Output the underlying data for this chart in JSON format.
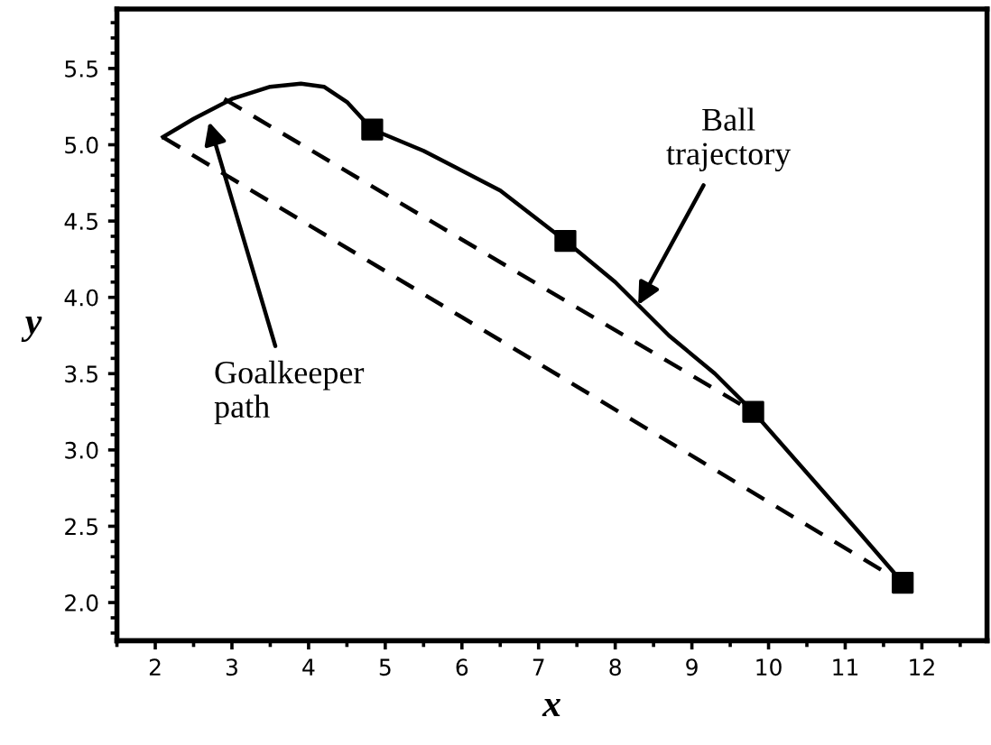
{
  "chart_data": {
    "type": "line",
    "xlabel": "x",
    "ylabel": "y",
    "xlim": [
      1.5,
      12.85
    ],
    "ylim": [
      1.75,
      5.89
    ],
    "xticks": [
      2,
      3,
      4,
      5,
      6,
      7,
      8,
      9,
      10,
      11,
      12
    ],
    "yticks": [
      {
        "value": 2.0,
        "label": "2.0"
      },
      {
        "value": 2.5,
        "label": "2.5"
      },
      {
        "value": 3.0,
        "label": "3.0"
      },
      {
        "value": 3.5,
        "label": "3.5"
      },
      {
        "value": 4.0,
        "label": "4.0"
      },
      {
        "value": 4.5,
        "label": "4.5"
      },
      {
        "value": 5.0,
        "label": "5.0"
      },
      {
        "value": 5.5,
        "label": "5.5"
      }
    ],
    "grid": false,
    "legend": false,
    "series": [
      {
        "color": "#000000",
        "line_style": "solid",
        "marker": "none",
        "x": [
          2.1,
          2.5,
          3.0,
          3.5,
          3.9,
          4.2,
          4.5,
          4.83,
          5.5,
          6.5,
          7.35,
          8.0,
          8.7,
          9.3,
          9.8,
          10.5,
          11.2,
          11.75
        ],
        "values": [
          5.05,
          5.17,
          5.3,
          5.38,
          5.4,
          5.38,
          5.28,
          5.1,
          4.96,
          4.7,
          4.37,
          4.1,
          3.75,
          3.5,
          3.25,
          2.85,
          2.45,
          2.13
        ]
      },
      {
        "type": "scatter",
        "color": "#000000",
        "marker": "square",
        "x": [
          4.83,
          7.35,
          9.8,
          11.75
        ],
        "values": [
          5.1,
          4.37,
          3.25,
          2.13
        ]
      },
      {
        "color": "#000000",
        "line_style": "dashed",
        "marker": "none",
        "x": [
          2.9,
          9.8
        ],
        "values": [
          5.3,
          3.25
        ]
      },
      {
        "color": "#000000",
        "line_style": "dashed",
        "marker": "none",
        "x": [
          2.1,
          11.75
        ],
        "values": [
          5.05,
          2.13
        ]
      }
    ],
    "annotations": [
      {
        "text": "Ball\ntrajectory",
        "x": 8.3,
        "y": 3.95
      },
      {
        "text": "Goalkeeper\npath",
        "x": 2.7,
        "y": 5.15
      }
    ]
  }
}
